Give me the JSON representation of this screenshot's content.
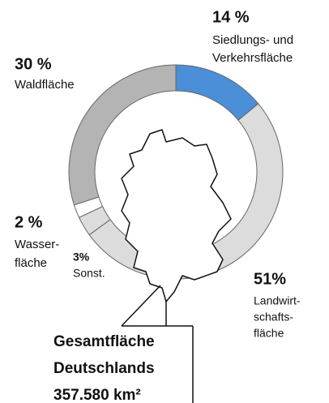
{
  "chart_data": {
    "type": "donut",
    "categories": [
      [
        "Siedlungs- und",
        "Verkehrsfläche"
      ],
      [
        "Landwirt-",
        "schafts-",
        "fläche"
      ],
      [
        "Sonst."
      ],
      [
        "Wasser-",
        "fläche"
      ],
      [
        "Waldfläche"
      ]
    ],
    "values": [
      14,
      51,
      3,
      2,
      30
    ],
    "value_labels": [
      "14 %",
      "51%",
      "3%",
      "2 %",
      "30 %"
    ],
    "colors": [
      "#4a8fd8",
      "#dcdcdc",
      "#dcdcdc",
      "#ffffff",
      "#b4b4b4"
    ],
    "annotation": [
      "Gesamtfläche",
      "Deutschlands",
      "357.580 km²"
    ]
  }
}
